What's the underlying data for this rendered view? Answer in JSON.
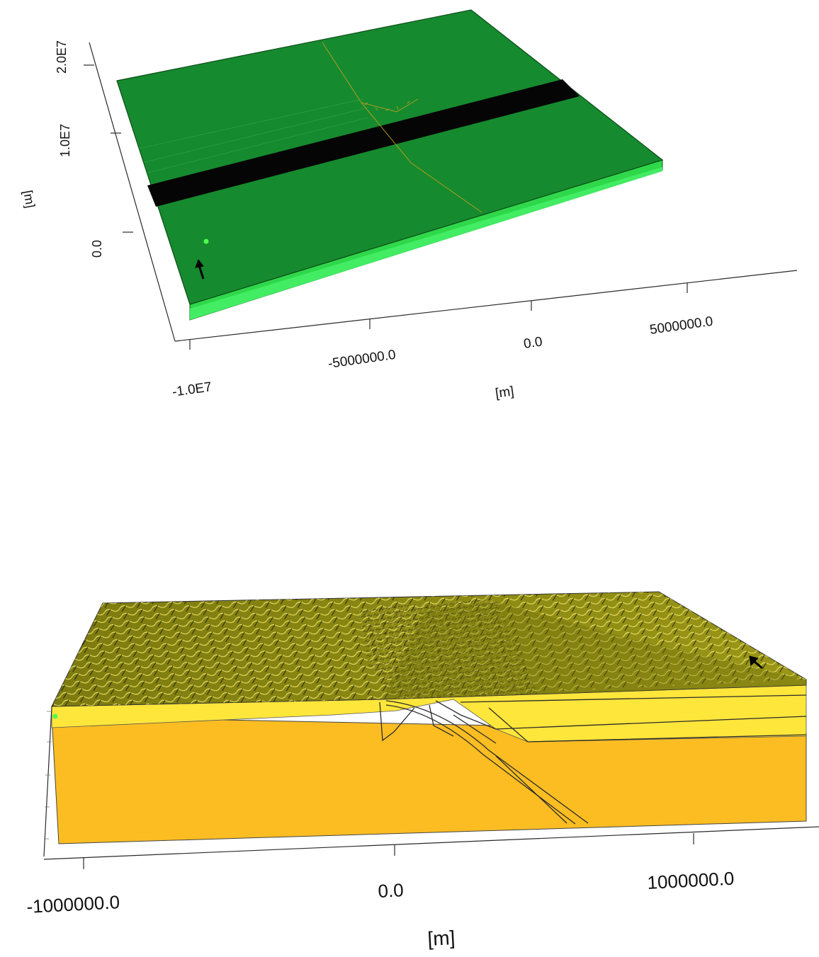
{
  "top_model": {
    "x_axis": {
      "tick_labels": [
        "-1.0E7",
        "-5000000.0",
        "0.0",
        "5000000.0"
      ],
      "unit_label": "[m]"
    },
    "y_axis": {
      "tick_labels": [
        "0.0",
        "1.0E7",
        "2.0E7"
      ],
      "unit_label": "[m]"
    },
    "colors": {
      "top_surface": "#168a2e",
      "side_face": "#3fe85a",
      "dark_band": "#050505",
      "trench_trace": "#c8a020"
    }
  },
  "bottom_model": {
    "x_axis": {
      "tick_labels": [
        "-1000000.0",
        "0.0",
        "1000000.0"
      ],
      "unit_label": "[m]"
    },
    "colors": {
      "top_surface": "#8c8a12",
      "mesh_lines": "#e8e060",
      "upper_layer": "#ffe63a",
      "mantle": "#fbbd22",
      "boundary_lines": "#2b2b2b"
    }
  }
}
